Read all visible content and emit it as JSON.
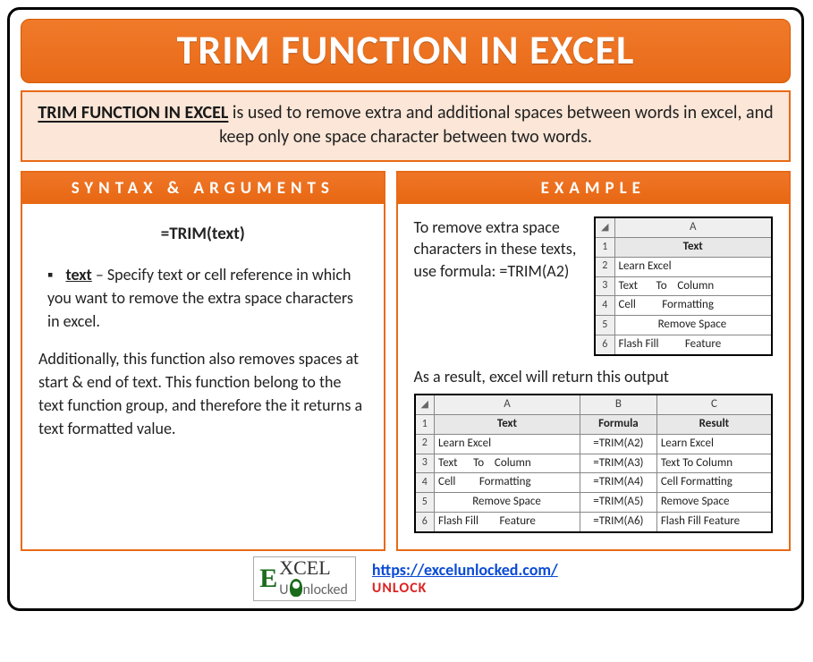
{
  "colors": {
    "accent": "#e86a18",
    "accent_light": "#fbe6d7",
    "border_black": "#000000",
    "grid": "#888888",
    "excel_header_bg": "#efefef",
    "link": "#0b4bd6",
    "logo_green": "#1a6b1a",
    "unlock_red": "#d22222"
  },
  "title": "TRIM FUNCTION IN EXCEL",
  "description": {
    "lead": "TRIM FUNCTION IN EXCEL",
    "rest": " is used to remove extra and additional spaces between words in excel, and keep only one space character between two words."
  },
  "left_panel": {
    "header": "SYNTAX & ARGUMENTS",
    "syntax": "=TRIM(text)",
    "arg_name": "text",
    "arg_desc": " – Specify text or cell reference in which you want to remove the extra space characters in excel.",
    "note": "Additionally, this function also removes spaces at start & end of text. This function belong to the text function group, and therefore the it returns a text formatted value."
  },
  "right_panel": {
    "header": "EXAMPLE",
    "intro": "To remove extra space characters in these texts, use formula: =TRIM(A2)",
    "table1": {
      "col_letter": "A",
      "header_label": "Text",
      "rows": [
        {
          "n": "1",
          "cell_is_header": true
        },
        {
          "n": "2",
          "text": "Learn Excel"
        },
        {
          "n": "3",
          "text": "Text       To    Column"
        },
        {
          "n": "4",
          "text": "Cell          Formatting"
        },
        {
          "n": "5",
          "text": "               Remove Space"
        },
        {
          "n": "6",
          "text": "Flash Fill          Feature"
        }
      ]
    },
    "result_caption": "As a result, excel will return this output",
    "table2": {
      "col_letters": [
        "A",
        "B",
        "C"
      ],
      "headers": [
        "Text",
        "Formula",
        "Result"
      ],
      "rows": [
        {
          "n": "2",
          "a": "Learn Excel",
          "b": "=TRIM(A2)",
          "c": "Learn Excel"
        },
        {
          "n": "3",
          "a": "Text      To    Column",
          "b": "=TRIM(A3)",
          "c": "Text To Column"
        },
        {
          "n": "4",
          "a": "Cell         Formatting",
          "b": "=TRIM(A4)",
          "c": "Cell Formatting"
        },
        {
          "n": "5",
          "a": "             Remove Space",
          "b": "=TRIM(A5)",
          "c": "Remove Space"
        },
        {
          "n": "6",
          "a": "Flash Fill        Feature",
          "b": "=TRIM(A6)",
          "c": "Flash Fill Feature"
        }
      ]
    }
  },
  "footer": {
    "logo_top": "XCEL",
    "logo_bottom": "nlocked",
    "logo_e": "E",
    "logo_u": "U",
    "url": "https://excelunlocked.com/",
    "unlock": "UNLOCK"
  }
}
